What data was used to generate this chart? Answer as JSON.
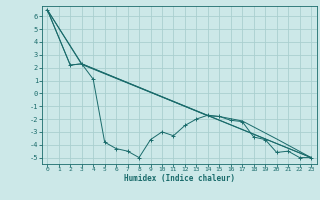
{
  "title": "",
  "xlabel": "Humidex (Indice chaleur)",
  "bg_color": "#cce8e8",
  "grid_color": "#aacfcf",
  "line_color": "#1a6b6b",
  "xlim": [
    -0.5,
    23.5
  ],
  "ylim": [
    -5.5,
    6.8
  ],
  "xticks": [
    0,
    1,
    2,
    3,
    4,
    5,
    6,
    7,
    8,
    9,
    10,
    11,
    12,
    13,
    14,
    15,
    16,
    17,
    18,
    19,
    20,
    21,
    22,
    23
  ],
  "yticks": [
    -5,
    -4,
    -3,
    -2,
    -1,
    0,
    1,
    2,
    3,
    4,
    5,
    6
  ],
  "series": [
    {
      "x": [
        0,
        2,
        3,
        4,
        5,
        6,
        7,
        8,
        9,
        10,
        11,
        12,
        13,
        14,
        15,
        16,
        17,
        18,
        19,
        20,
        21,
        22,
        23
      ],
      "y": [
        6.5,
        2.2,
        2.3,
        1.1,
        -3.8,
        -4.3,
        -4.5,
        -5.0,
        -3.6,
        -3.0,
        -3.3,
        -2.5,
        -2.0,
        -1.7,
        -1.8,
        -2.1,
        -2.2,
        -3.4,
        -3.6,
        -4.6,
        -4.5,
        -5.0,
        -5.0
      ],
      "marker": true
    },
    {
      "x": [
        0,
        2,
        3,
        23
      ],
      "y": [
        6.5,
        2.2,
        2.3,
        -5.0
      ],
      "marker": false
    },
    {
      "x": [
        0,
        3,
        23
      ],
      "y": [
        6.5,
        2.25,
        -5.0
      ],
      "marker": false
    },
    {
      "x": [
        0,
        3,
        14,
        15,
        17,
        20,
        23
      ],
      "y": [
        6.5,
        2.3,
        -1.75,
        -1.8,
        -2.15,
        -3.55,
        -5.0
      ],
      "marker": false
    }
  ]
}
